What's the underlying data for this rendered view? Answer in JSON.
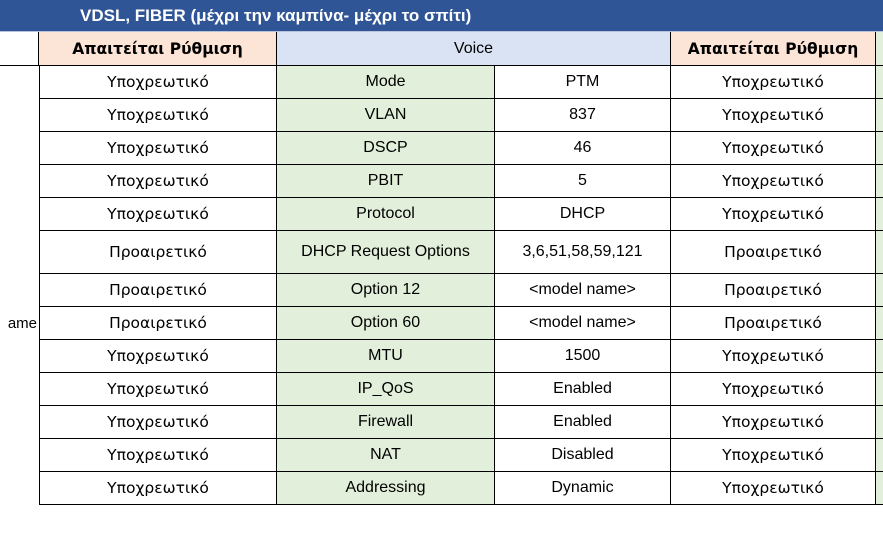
{
  "banner": {
    "title": "VDSL, FIBER (μέχρι την καμπίνα- μέχρι το σπίτι)"
  },
  "header": {
    "left_req": "Απαιτείται Ρύθμιση",
    "section": "Voice",
    "right_req": "Απαιτείται Ρύθμιση"
  },
  "left_edge_fragment": "ame",
  "rows": [
    {
      "req_left": "Υποχρεωτικό",
      "param": "Mode",
      "value": "PTM",
      "req_right": "Υποχρεωτικό"
    },
    {
      "req_left": "Υποχρεωτικό",
      "param": "VLAN",
      "value": "837",
      "req_right": "Υποχρεωτικό"
    },
    {
      "req_left": "Υποχρεωτικό",
      "param": "DSCP",
      "value": "46",
      "req_right": "Υποχρεωτικό"
    },
    {
      "req_left": "Υποχρεωτικό",
      "param": "PBIT",
      "value": "5",
      "req_right": "Υποχρεωτικό"
    },
    {
      "req_left": "Υποχρεωτικό",
      "param": "Protocol",
      "value": "DHCP",
      "req_right": "Υποχρεωτικό"
    },
    {
      "req_left": "Προαιρετικό",
      "param": "DHCP Request Options",
      "value": "3,6,51,58,59,121",
      "req_right": "Προαιρετικό"
    },
    {
      "req_left": "Προαιρετικό",
      "param": "Option 12",
      "value": "<model name>",
      "req_right": "Προαιρετικό"
    },
    {
      "req_left": "Προαιρετικό",
      "param": "Option 60",
      "value": "<model name>",
      "req_right": "Προαιρετικό"
    },
    {
      "req_left": "Υποχρεωτικό",
      "param": "MTU",
      "value": "1500",
      "req_right": "Υποχρεωτικό"
    },
    {
      "req_left": "Υποχρεωτικό",
      "param": "IP_QoS",
      "value": "Enabled",
      "req_right": "Υποχρεωτικό"
    },
    {
      "req_left": "Υποχρεωτικό",
      "param": "Firewall",
      "value": "Enabled",
      "req_right": "Υποχρεωτικό"
    },
    {
      "req_left": "Υποχρεωτικό",
      "param": "NAT",
      "value": "Disabled",
      "req_right": "Υποχρεωτικό"
    },
    {
      "req_left": "Υποχρεωτικό",
      "param": "Addressing",
      "value": "Dynamic",
      "req_right": "Υποχρεωτικό"
    }
  ],
  "colors": {
    "banner": "#2f5596",
    "req_header": "#fce4d6",
    "voice_header": "#dae3f3",
    "param": "#e2efda"
  }
}
